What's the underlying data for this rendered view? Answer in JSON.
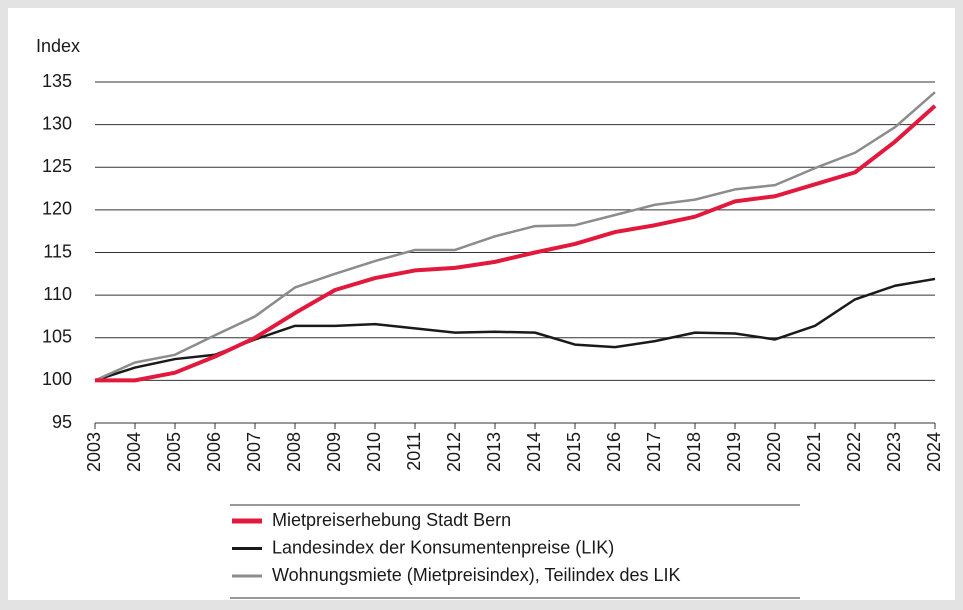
{
  "chart_data": {
    "type": "line",
    "ylabel": "Index",
    "x": [
      2003,
      2004,
      2005,
      2006,
      2007,
      2008,
      2009,
      2010,
      2011,
      2012,
      2013,
      2014,
      2015,
      2016,
      2017,
      2018,
      2019,
      2020,
      2021,
      2022,
      2023,
      2024
    ],
    "xlim": [
      2003,
      2024
    ],
    "xticks": [
      2003,
      2004,
      2005,
      2006,
      2007,
      2008,
      2009,
      2010,
      2011,
      2012,
      2013,
      2014,
      2015,
      2016,
      2017,
      2018,
      2019,
      2020,
      2021,
      2022,
      2023,
      2024
    ],
    "ylim": [
      95,
      135
    ],
    "yticks": [
      95,
      100,
      105,
      110,
      115,
      120,
      125,
      130,
      135
    ],
    "grid": true,
    "series": [
      {
        "name": "Mietpreiserhebung Stadt Bern",
        "color": "#e2183d",
        "values": [
          100,
          100,
          100.9,
          102.8,
          105,
          107.9,
          110.6,
          112,
          112.9,
          113.2,
          113.9,
          115,
          116,
          117.4,
          118.2,
          119.2,
          121,
          121.6,
          123,
          124.4,
          128,
          132.2
        ]
      },
      {
        "name": "Landesindex der Konsumentenpreise (LIK)",
        "color": "#1a1a1a",
        "values": [
          100,
          101.5,
          102.5,
          103,
          104.8,
          106.4,
          106.4,
          106.6,
          106.1,
          105.6,
          105.7,
          105.6,
          104.2,
          103.9,
          104.6,
          105.6,
          105.5,
          104.8,
          106.4,
          109.5,
          111.1,
          111.9
        ]
      },
      {
        "name": "Wohnungsmiete (Mietpreisindex), Teilindex des LIK",
        "color": "#8c8c8c",
        "values": [
          100,
          102.1,
          103,
          105.3,
          107.5,
          110.9,
          112.5,
          114,
          115.3,
          115.3,
          116.9,
          118.1,
          118.2,
          119.4,
          120.6,
          121.2,
          122.4,
          122.9,
          124.9,
          126.7,
          129.7,
          133.8
        ]
      }
    ]
  }
}
